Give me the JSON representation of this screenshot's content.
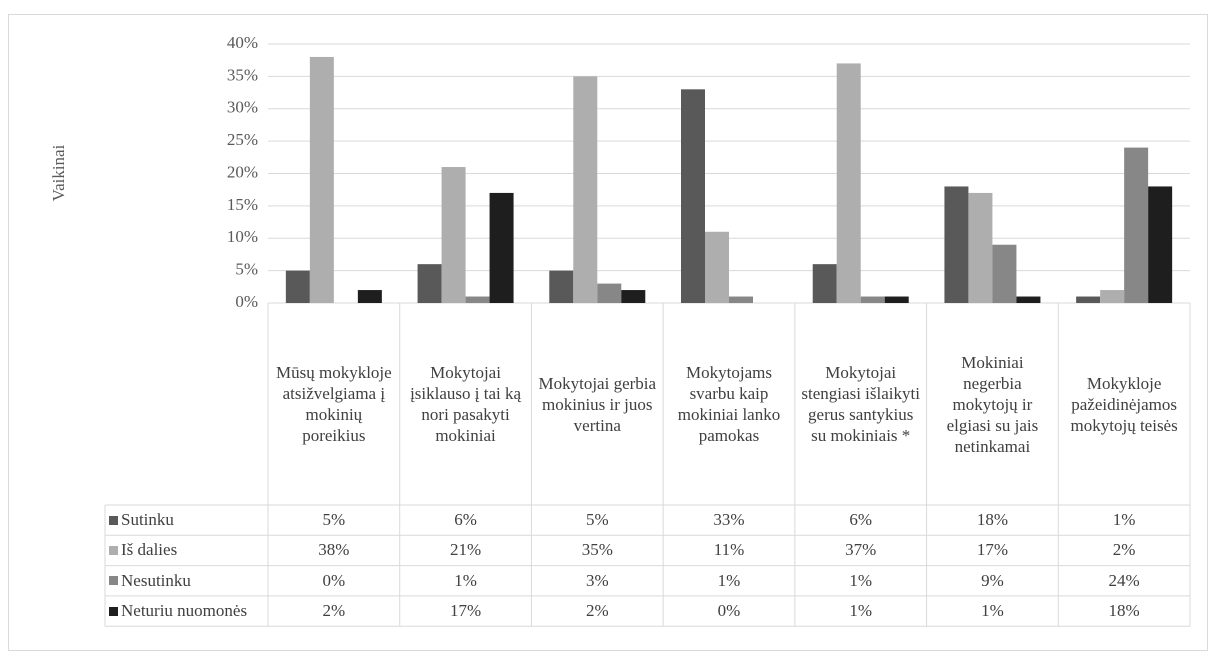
{
  "chart_data": {
    "type": "bar",
    "y_axis_label": "Vaikinai",
    "categories": [
      "Mūsų mokykloje atsižvelgiama į mokinių poreikius",
      "Mokytojai įsiklauso į tai ką nori pasakyti mokiniai",
      "Mokytojai gerbia mokinius ir juos vertina",
      "Mokytojams svarbu kaip mokiniai lanko pamokas",
      "Mokytojai stengiasi išlaikyti gerus santykius su mokiniais *",
      "Mokiniai negerbia mokytojų ir elgiasi su jais netinkamai",
      "Mokykloje pažeidinėjamos mokytojų teisės"
    ],
    "series": [
      {
        "name": "Sutinku",
        "color": "#595959",
        "values": [
          5,
          6,
          5,
          33,
          6,
          18,
          1
        ],
        "value_labels": [
          "5%",
          "6%",
          "5%",
          "33%",
          "6%",
          "18%",
          "1%"
        ]
      },
      {
        "name": "Iš dalies",
        "color": "#aeaeae",
        "values": [
          38,
          21,
          35,
          11,
          37,
          17,
          2
        ],
        "value_labels": [
          "38%",
          "21%",
          "35%",
          "11%",
          "37%",
          "17%",
          "2%"
        ]
      },
      {
        "name": "Nesutinku",
        "color": "#878787",
        "values": [
          0,
          1,
          3,
          1,
          1,
          9,
          24
        ],
        "value_labels": [
          "0%",
          "1%",
          "3%",
          "1%",
          "1%",
          "9%",
          "24%"
        ]
      },
      {
        "name": "Neturiu nuomonės",
        "color": "#1e1e1e",
        "values": [
          2,
          17,
          2,
          0,
          1,
          1,
          18
        ],
        "value_labels": [
          "2%",
          "17%",
          "2%",
          "0%",
          "1%",
          "1%",
          "18%"
        ]
      }
    ],
    "ylim": [
      0,
      40
    ],
    "yticks": [
      {
        "value": 0,
        "label": "0%"
      },
      {
        "value": 5,
        "label": "5%"
      },
      {
        "value": 10,
        "label": "10%"
      },
      {
        "value": 15,
        "label": "15%"
      },
      {
        "value": 20,
        "label": "20%"
      },
      {
        "value": 25,
        "label": "25%"
      },
      {
        "value": 30,
        "label": "30%"
      },
      {
        "value": 35,
        "label": "35%"
      },
      {
        "value": 40,
        "label": "40%"
      }
    ],
    "grid": true
  }
}
